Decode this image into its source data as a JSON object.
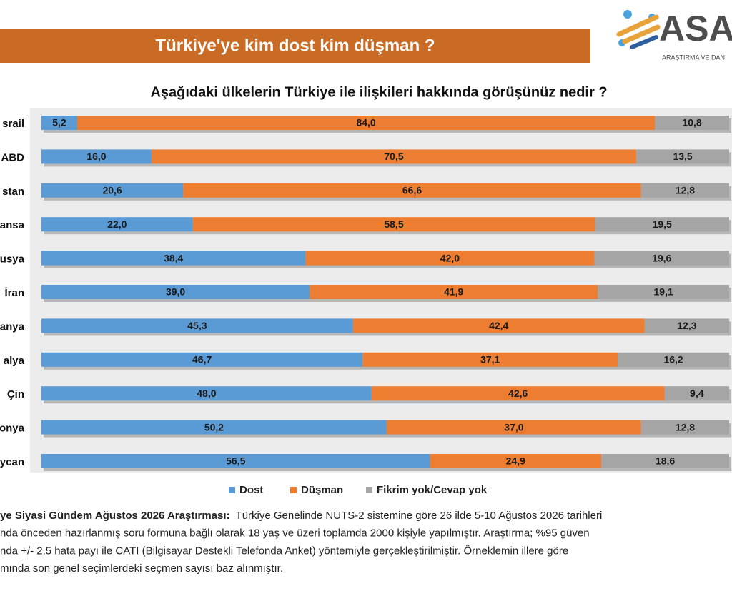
{
  "header": {
    "title": "Türkiye'ye kim dost kim düşman ?",
    "logo": "ASA",
    "logo_tagline": "ARAŞTIRMA VE DAN"
  },
  "chart_data": {
    "type": "bar",
    "orientation": "horizontal",
    "stacked": true,
    "title": "Aşağıdaki ülkelerin Türkiye ile ilişkileri hakkında görüşünüz nedir ?",
    "categories": [
      "srail",
      "ABD",
      "stan",
      "ansa",
      "usya",
      "İran",
      "anya",
      "alya",
      "Çin",
      "onya",
      "ycan"
    ],
    "xlim": [
      0,
      100
    ],
    "legend": "bottom",
    "series": [
      {
        "name": "Dost",
        "color": "#5b9bd5",
        "values": [
          5.2,
          16.0,
          20.6,
          22.0,
          38.4,
          39.0,
          45.3,
          46.7,
          48.0,
          50.2,
          56.5
        ],
        "value_labels": [
          "5,2",
          "16,0",
          "20,6",
          "22,0",
          "38,4",
          "39,0",
          "45,3",
          "46,7",
          "48,0",
          "50,2",
          "56,5"
        ]
      },
      {
        "name": "Düşman",
        "color": "#ed7d31",
        "values": [
          84.0,
          70.5,
          66.6,
          58.5,
          42.0,
          41.9,
          42.4,
          37.1,
          42.6,
          37.0,
          24.9
        ],
        "value_labels": [
          "84,0",
          "70,5",
          "66,6",
          "58,5",
          "42,0",
          "41,9",
          "42,4",
          "37,1",
          "42,6",
          "37,0",
          "24,9"
        ]
      },
      {
        "name": "Fikrim yok/Cevap yok",
        "color": "#a5a5a5",
        "values": [
          10.8,
          13.5,
          12.8,
          19.5,
          19.6,
          19.1,
          12.3,
          16.2,
          9.4,
          12.8,
          18.6
        ],
        "value_labels": [
          "10,8",
          "13,5",
          "12,8",
          "19,5",
          "19,6",
          "19,1",
          "12,3",
          "16,2",
          "9,4",
          "12,8",
          "18,6"
        ]
      }
    ]
  },
  "footnote": {
    "lead": "ye Siyasi Gündem Ağustos 2026 Araştırması:",
    "lines": [
      "Türkiye Genelinde NUTS-2 sistemine göre 26 ilde 5-10 Ağustos 2026 tarihleri",
      "nda önceden hazırlanmış soru formuna bağlı olarak 18 yaş ve üzeri toplamda 2000 kişiyle yapılmıştır. Araştırma; %95 güven",
      "nda +/- 2.5 hata payı ile CATI (Bilgisayar Destekli Telefonda Anket) yöntemiyle gerçekleştirilmiştir. Örneklemin illere göre",
      "mında son genel seçimlerdeki seçmen sayısı baz alınmıştır."
    ]
  }
}
